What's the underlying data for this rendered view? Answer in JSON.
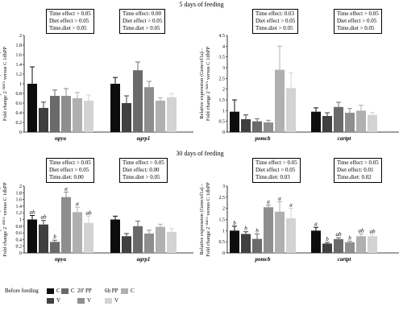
{
  "figure": {
    "section_titles": [
      "5 days of feeding",
      "30 days of feeding"
    ],
    "ylabel_line1": "Relative expression (Gene/ef1a) -",
    "ylabel_line2": "Fold change 2",
    "ylabel_sup": "−ΔΔCt",
    "ylabel_line2_end": " versus C 1dhPP"
  },
  "legend": {
    "groups": [
      "Before feeding",
      "20' PP",
      "6h PP"
    ],
    "entries": [
      {
        "label": "C",
        "color": "#0d0d0d"
      },
      {
        "label": "V",
        "color": "#404040"
      },
      {
        "label": "C",
        "color": "#6a6a6a"
      },
      {
        "label": "V",
        "color": "#8e8e8e"
      },
      {
        "label": "C",
        "color": "#b0b0b0"
      },
      {
        "label": "V",
        "color": "#d3d3d3"
      }
    ]
  },
  "stat_boxes": [
    {
      "lines": [
        "Time effect > 0.05",
        "Diet effect > 0.05",
        "Time.diet > 0.05"
      ]
    },
    {
      "lines": [
        "Time effect: 0.00",
        "Diet effect > 0.05",
        "Time.diet > 0.05"
      ]
    },
    {
      "lines": [
        "Time effect: 0.03",
        "Diet effect > 0.05",
        "Time.diet > 0.05"
      ]
    },
    {
      "lines": [
        "Time effect > 0.05",
        "Diet effect > 0.05",
        "Time.diet > 0.05"
      ]
    },
    {
      "lines": [
        "Time effect > 0.05",
        "Diet effect > 0.05",
        "Time.diet: 0.00"
      ]
    },
    {
      "lines": [
        "Time effect > 0.05",
        "Diet effect: 0.00",
        "Time.diet > 0.05"
      ]
    },
    {
      "lines": [
        "Time effect > 0.05",
        "Diet effect > 0.05",
        "Time.diet: 0.03"
      ]
    },
    {
      "lines": [
        "Time effect > 0.05",
        "Diet effect: 0.01",
        "Time.diet: 0.02"
      ]
    }
  ],
  "chart_data": [
    {
      "type": "bar",
      "panel": "5 days of feeding",
      "categories": [
        "npya",
        "agrp1"
      ],
      "series_labels": [
        "C",
        "V",
        "C",
        "V",
        "C",
        "V"
      ],
      "values": [
        [
          1.0,
          0.5,
          0.75,
          0.75,
          0.7,
          0.65
        ],
        [
          1.0,
          0.6,
          1.28,
          0.93,
          0.65,
          0.72
        ]
      ],
      "errors": [
        [
          0.35,
          0.12,
          0.12,
          0.15,
          0.12,
          0.12
        ],
        [
          0.13,
          0.15,
          0.17,
          0.12,
          0.06,
          0.08
        ]
      ],
      "letters": [],
      "ylim": [
        0,
        2
      ],
      "yticks": [
        "0",
        "0.2",
        "0.4",
        "0.6",
        "0.8",
        "1",
        "1.2",
        "1.4",
        "1.6",
        "1.8",
        "2"
      ]
    },
    {
      "type": "bar",
      "panel": "5 days of feeding",
      "categories": [
        "pomcb",
        "cartpt"
      ],
      "series_labels": [
        "C",
        "V",
        "C",
        "V",
        "C",
        "V"
      ],
      "values": [
        [
          0.95,
          0.6,
          0.5,
          0.45,
          2.9,
          2.05
        ],
        [
          0.95,
          0.75,
          1.17,
          0.9,
          1.0,
          0.8
        ]
      ],
      "errors": [
        [
          0.55,
          0.2,
          0.12,
          0.1,
          1.1,
          0.7
        ],
        [
          0.18,
          0.15,
          0.22,
          0.2,
          0.25,
          0.12
        ]
      ],
      "letters": [],
      "ylim": [
        0,
        4.5
      ],
      "yticks": [
        "0",
        "0.5",
        "1",
        "1.5",
        "2",
        "2.5",
        "3",
        "3.5",
        "4",
        "4.5"
      ]
    },
    {
      "type": "bar",
      "panel": "30 days of feeding",
      "categories": [
        "npya",
        "agrp1"
      ],
      "series_labels": [
        "C",
        "V",
        "C",
        "V",
        "C",
        "V"
      ],
      "values": [
        [
          1.0,
          0.85,
          0.33,
          1.67,
          1.22,
          0.9
        ],
        [
          1.0,
          0.5,
          0.8,
          0.58,
          0.78,
          0.63
        ]
      ],
      "errors": [
        [
          0.12,
          0.12,
          0.05,
          0.15,
          0.15,
          0.2
        ],
        [
          0.1,
          0.08,
          0.15,
          0.1,
          0.08,
          0.1
        ]
      ],
      "letters": [
        [
          "ab",
          "ab",
          "b",
          "a",
          "a",
          "ab"
        ],
        []
      ],
      "ylim": [
        0,
        2
      ],
      "yticks": [
        "0",
        "0.2",
        "0.4",
        "0.6",
        "0.8",
        "1",
        "1.2",
        "1.4",
        "1.6",
        "1.8",
        "2"
      ]
    },
    {
      "type": "bar",
      "panel": "30 days of feeding",
      "categories": [
        "pomcb",
        "cartpt"
      ],
      "series_labels": [
        "C",
        "V",
        "C",
        "V",
        "C",
        "V"
      ],
      "values": [
        [
          1.0,
          0.85,
          0.63,
          2.05,
          1.85,
          1.55
        ],
        [
          1.0,
          0.42,
          0.62,
          0.48,
          0.75,
          0.75
        ]
      ],
      "errors": [
        [
          0.2,
          0.1,
          0.22,
          0.1,
          0.45,
          0.45
        ],
        [
          0.15,
          0.05,
          0.06,
          0.05,
          0.1,
          0.06
        ]
      ],
      "letters": [
        [
          "b",
          "b",
          "b",
          "a",
          "a",
          "a"
        ],
        [
          "a",
          "b",
          "ab",
          "b",
          "ab",
          "ab"
        ]
      ],
      "ylim": [
        0,
        3
      ],
      "yticks": [
        "0",
        "0.5",
        "1",
        "1.5",
        "2",
        "2.5",
        "3"
      ]
    }
  ]
}
